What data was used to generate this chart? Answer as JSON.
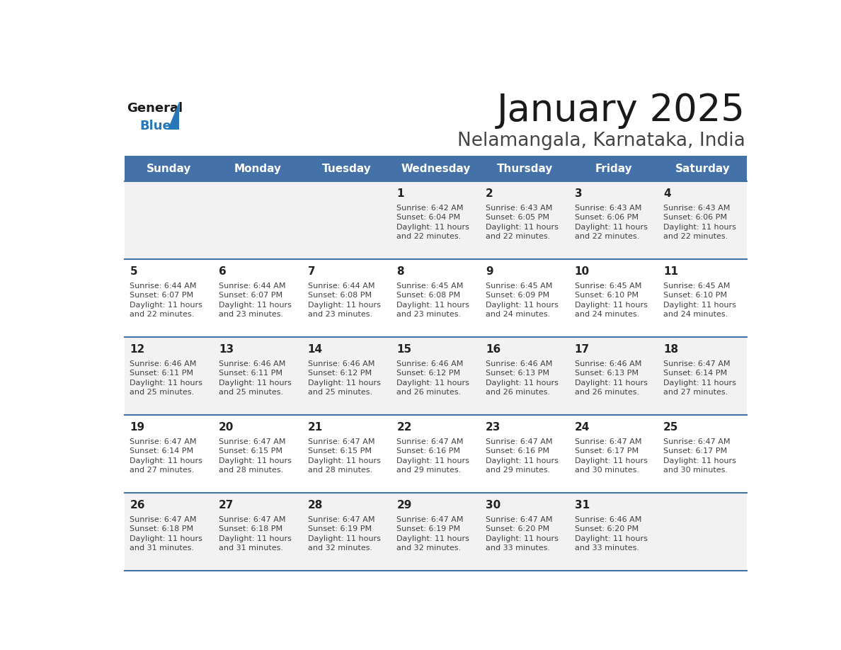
{
  "title": "January 2025",
  "subtitle": "Nelamangala, Karnataka, India",
  "header_bg": "#4472a8",
  "header_text_color": "#ffffff",
  "day_names": [
    "Sunday",
    "Monday",
    "Tuesday",
    "Wednesday",
    "Thursday",
    "Friday",
    "Saturday"
  ],
  "bg_color": "#ffffff",
  "cell_bg_odd": "#f2f2f2",
  "cell_bg_even": "#ffffff",
  "separator_color": "#4472a8",
  "text_color": "#404040",
  "day_num_color": "#222222",
  "calendar": [
    [
      {
        "day": "",
        "sunrise": "",
        "sunset": "",
        "daylight": ""
      },
      {
        "day": "",
        "sunrise": "",
        "sunset": "",
        "daylight": ""
      },
      {
        "day": "",
        "sunrise": "",
        "sunset": "",
        "daylight": ""
      },
      {
        "day": "1",
        "sunrise": "6:42 AM",
        "sunset": "6:04 PM",
        "daylight": "11 hours\nand 22 minutes."
      },
      {
        "day": "2",
        "sunrise": "6:43 AM",
        "sunset": "6:05 PM",
        "daylight": "11 hours\nand 22 minutes."
      },
      {
        "day": "3",
        "sunrise": "6:43 AM",
        "sunset": "6:06 PM",
        "daylight": "11 hours\nand 22 minutes."
      },
      {
        "day": "4",
        "sunrise": "6:43 AM",
        "sunset": "6:06 PM",
        "daylight": "11 hours\nand 22 minutes."
      }
    ],
    [
      {
        "day": "5",
        "sunrise": "6:44 AM",
        "sunset": "6:07 PM",
        "daylight": "11 hours\nand 22 minutes."
      },
      {
        "day": "6",
        "sunrise": "6:44 AM",
        "sunset": "6:07 PM",
        "daylight": "11 hours\nand 23 minutes."
      },
      {
        "day": "7",
        "sunrise": "6:44 AM",
        "sunset": "6:08 PM",
        "daylight": "11 hours\nand 23 minutes."
      },
      {
        "day": "8",
        "sunrise": "6:45 AM",
        "sunset": "6:08 PM",
        "daylight": "11 hours\nand 23 minutes."
      },
      {
        "day": "9",
        "sunrise": "6:45 AM",
        "sunset": "6:09 PM",
        "daylight": "11 hours\nand 24 minutes."
      },
      {
        "day": "10",
        "sunrise": "6:45 AM",
        "sunset": "6:10 PM",
        "daylight": "11 hours\nand 24 minutes."
      },
      {
        "day": "11",
        "sunrise": "6:45 AM",
        "sunset": "6:10 PM",
        "daylight": "11 hours\nand 24 minutes."
      }
    ],
    [
      {
        "day": "12",
        "sunrise": "6:46 AM",
        "sunset": "6:11 PM",
        "daylight": "11 hours\nand 25 minutes."
      },
      {
        "day": "13",
        "sunrise": "6:46 AM",
        "sunset": "6:11 PM",
        "daylight": "11 hours\nand 25 minutes."
      },
      {
        "day": "14",
        "sunrise": "6:46 AM",
        "sunset": "6:12 PM",
        "daylight": "11 hours\nand 25 minutes."
      },
      {
        "day": "15",
        "sunrise": "6:46 AM",
        "sunset": "6:12 PM",
        "daylight": "11 hours\nand 26 minutes."
      },
      {
        "day": "16",
        "sunrise": "6:46 AM",
        "sunset": "6:13 PM",
        "daylight": "11 hours\nand 26 minutes."
      },
      {
        "day": "17",
        "sunrise": "6:46 AM",
        "sunset": "6:13 PM",
        "daylight": "11 hours\nand 26 minutes."
      },
      {
        "day": "18",
        "sunrise": "6:47 AM",
        "sunset": "6:14 PM",
        "daylight": "11 hours\nand 27 minutes."
      }
    ],
    [
      {
        "day": "19",
        "sunrise": "6:47 AM",
        "sunset": "6:14 PM",
        "daylight": "11 hours\nand 27 minutes."
      },
      {
        "day": "20",
        "sunrise": "6:47 AM",
        "sunset": "6:15 PM",
        "daylight": "11 hours\nand 28 minutes."
      },
      {
        "day": "21",
        "sunrise": "6:47 AM",
        "sunset": "6:15 PM",
        "daylight": "11 hours\nand 28 minutes."
      },
      {
        "day": "22",
        "sunrise": "6:47 AM",
        "sunset": "6:16 PM",
        "daylight": "11 hours\nand 29 minutes."
      },
      {
        "day": "23",
        "sunrise": "6:47 AM",
        "sunset": "6:16 PM",
        "daylight": "11 hours\nand 29 minutes."
      },
      {
        "day": "24",
        "sunrise": "6:47 AM",
        "sunset": "6:17 PM",
        "daylight": "11 hours\nand 30 minutes."
      },
      {
        "day": "25",
        "sunrise": "6:47 AM",
        "sunset": "6:17 PM",
        "daylight": "11 hours\nand 30 minutes."
      }
    ],
    [
      {
        "day": "26",
        "sunrise": "6:47 AM",
        "sunset": "6:18 PM",
        "daylight": "11 hours\nand 31 minutes."
      },
      {
        "day": "27",
        "sunrise": "6:47 AM",
        "sunset": "6:18 PM",
        "daylight": "11 hours\nand 31 minutes."
      },
      {
        "day": "28",
        "sunrise": "6:47 AM",
        "sunset": "6:19 PM",
        "daylight": "11 hours\nand 32 minutes."
      },
      {
        "day": "29",
        "sunrise": "6:47 AM",
        "sunset": "6:19 PM",
        "daylight": "11 hours\nand 32 minutes."
      },
      {
        "day": "30",
        "sunrise": "6:47 AM",
        "sunset": "6:20 PM",
        "daylight": "11 hours\nand 33 minutes."
      },
      {
        "day": "31",
        "sunrise": "6:46 AM",
        "sunset": "6:20 PM",
        "daylight": "11 hours\nand 33 minutes."
      },
      {
        "day": "",
        "sunrise": "",
        "sunset": "",
        "daylight": ""
      }
    ]
  ]
}
